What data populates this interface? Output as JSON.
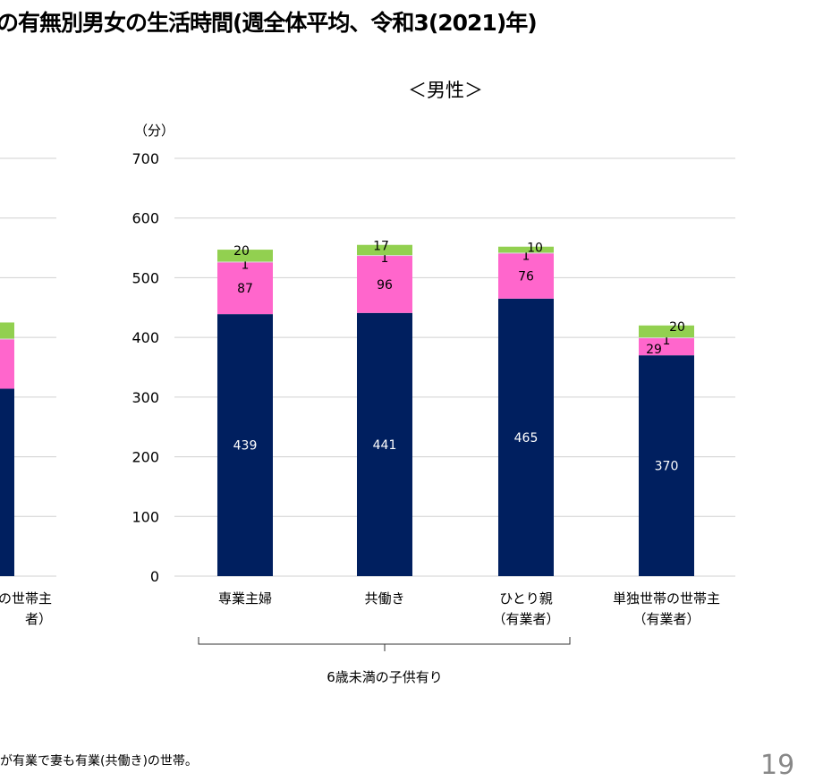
{
  "title": "の有無別男女の生活時間(週全体平均、令和3(2021)年)",
  "footnote": "が有業で妻も有業(共働き)の世帯。",
  "page_number": "19",
  "chart_data": [
    {
      "type": "bar",
      "stacked": true,
      "title": "＜男性＞",
      "ylabel": "（分）",
      "ylim": [
        0,
        700
      ],
      "yticks": [
        0,
        100,
        200,
        300,
        400,
        500,
        600,
        700
      ],
      "grid": true,
      "categories": [
        [
          "専業主婦"
        ],
        [
          "共働き"
        ],
        [
          "ひとり親",
          "（有業者）"
        ],
        [
          "単独世帯の世帯主",
          "（有業者）"
        ]
      ],
      "group_label": "6歳未満の子供有り",
      "group_categories": [
        0,
        1,
        2
      ],
      "colors": [
        "#001F5F",
        "#FF66CC",
        "#D9D9D9",
        "#92D050"
      ],
      "series": [
        {
          "values": [
            439,
            441,
            465,
            370
          ]
        },
        {
          "values": [
            87,
            96,
            76,
            29
          ]
        },
        {
          "values": [
            1,
            1,
            1,
            1
          ]
        },
        {
          "values": [
            20,
            17,
            10,
            20
          ]
        }
      ]
    },
    {
      "type": "bar",
      "stacked": true,
      "partial": true,
      "ylim": [
        0,
        700
      ],
      "grid": true,
      "categories": [
        [
          "の世帯主",
          "者）"
        ]
      ],
      "colors": [
        "#001F5F",
        "#FF66CC",
        "#D9D9D9",
        "#92D050"
      ],
      "series": [
        {
          "values": [
            314
          ]
        },
        {
          "values": [
            83
          ]
        },
        {
          "values": [
            1
          ]
        },
        {
          "values": [
            27
          ]
        }
      ]
    }
  ]
}
